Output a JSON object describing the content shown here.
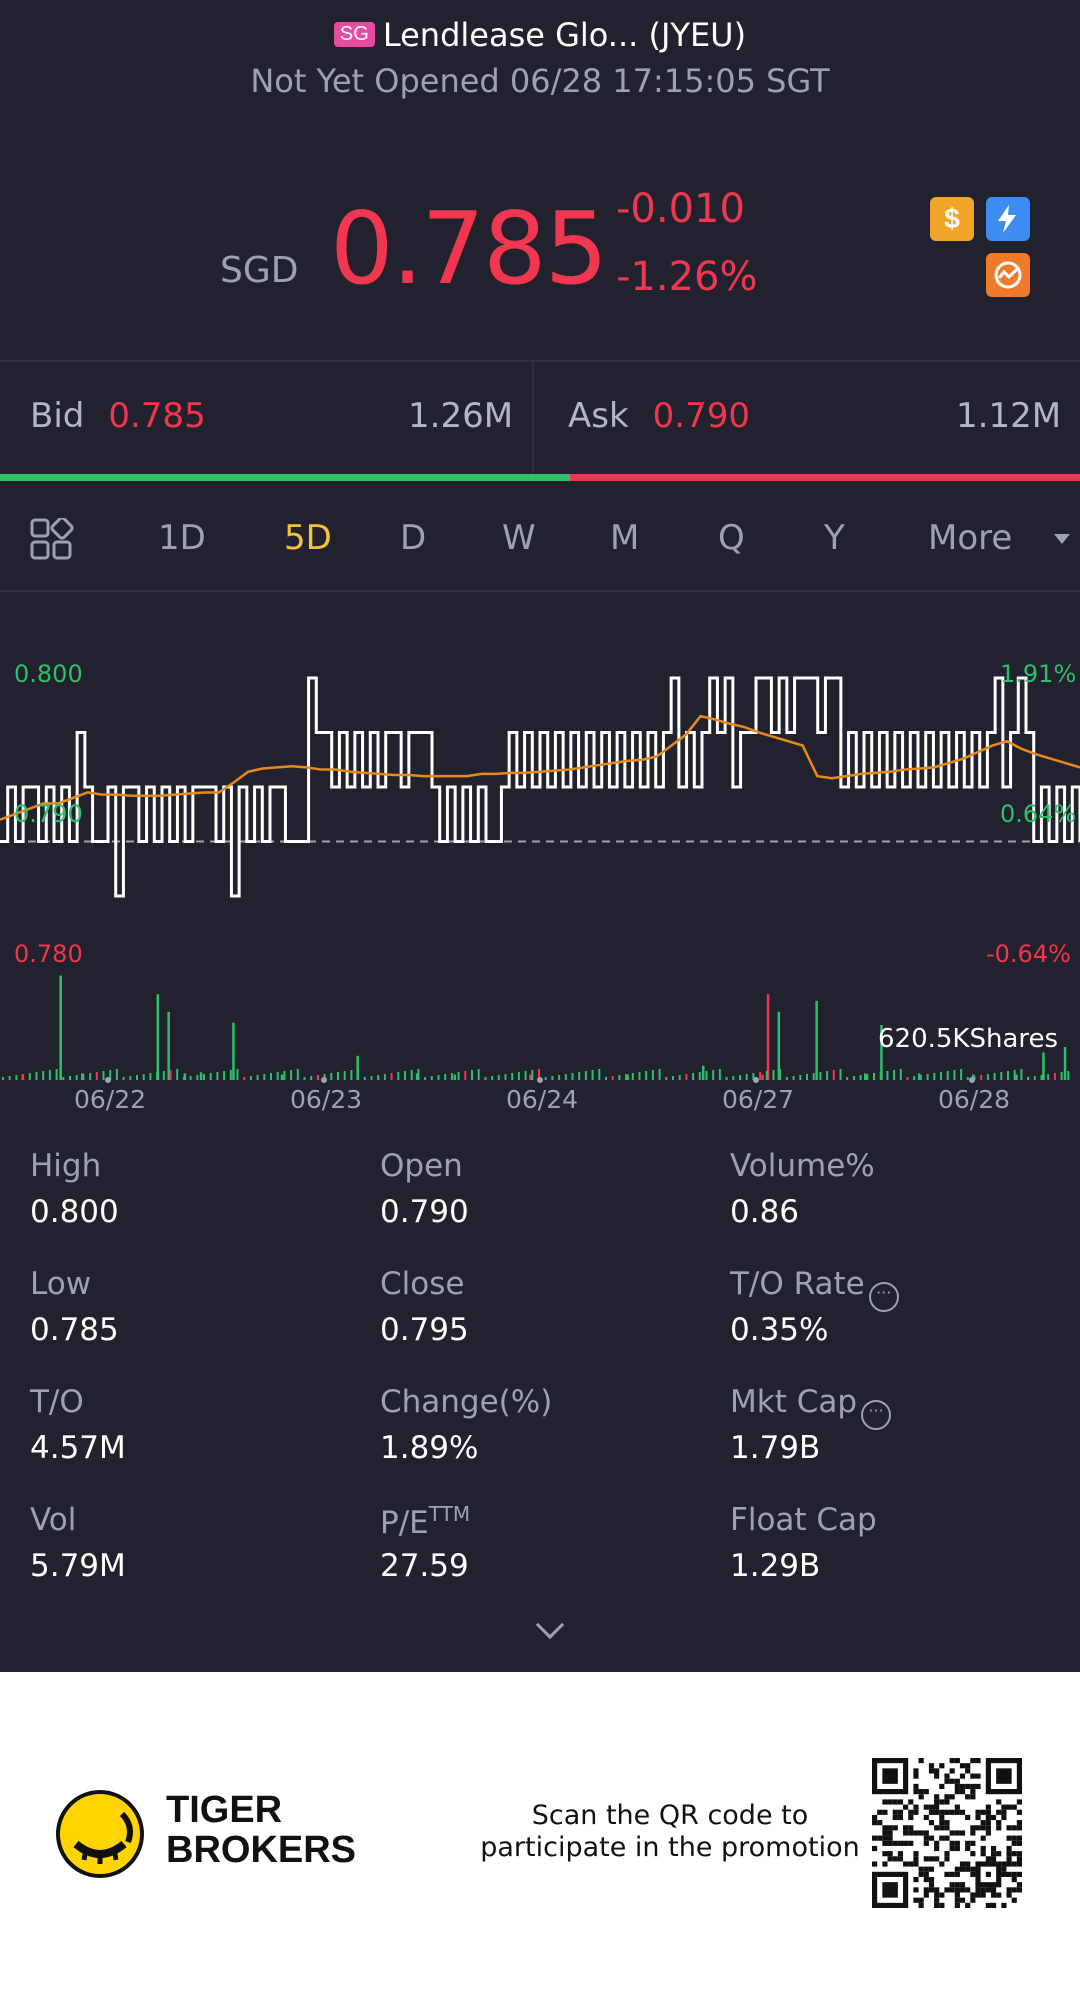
{
  "header": {
    "market_badge": "SG",
    "title": "Lendlease Glo... (JYEU)",
    "status": "Not Yet Opened 06/28 17:15:05 SGT"
  },
  "quote": {
    "currency": "SGD",
    "price": "0.785",
    "change": "-0.010",
    "change_pct": "-1.26%"
  },
  "quick_icons": [
    "dollar-icon",
    "lightning-level1-icon",
    "options-chain-icon"
  ],
  "order_book": {
    "bid_label": "Bid",
    "bid_price": "0.785",
    "bid_size": "1.26M",
    "ask_label": "Ask",
    "ask_price": "0.790",
    "ask_size": "1.12M",
    "bid_share": 0.528
  },
  "tabs": {
    "items": [
      "1D",
      "5D",
      "D",
      "W",
      "M",
      "Q",
      "Y",
      "More"
    ],
    "active": "5D"
  },
  "chart_data": {
    "type": "line",
    "y_left_labels": [
      "0.800",
      "0.790",
      "0.780"
    ],
    "y_right_labels": [
      "1.91%",
      "0.64%",
      "-0.64%"
    ],
    "x_labels": [
      "06/22",
      "06/23",
      "06/24",
      "06/27",
      "06/28"
    ],
    "ylim": [
      0.78,
      0.8
    ],
    "reference_price": 0.785,
    "volume_label": "620.5KShares",
    "series": [
      {
        "name": "price",
        "values": [
          0.785,
          0.79,
          0.785,
          0.79,
          0.79,
          0.785,
          0.79,
          0.785,
          0.79,
          0.785,
          0.795,
          0.79,
          0.785,
          0.785,
          0.79,
          0.78,
          0.79,
          0.79,
          0.785,
          0.79,
          0.785,
          0.79,
          0.785,
          0.79,
          0.785,
          0.79,
          0.79,
          0.79,
          0.785,
          0.79,
          0.78,
          0.79,
          0.785,
          0.79,
          0.785,
          0.79,
          0.79,
          0.785,
          0.785,
          0.785,
          0.8,
          0.795,
          0.795,
          0.79,
          0.795,
          0.79,
          0.795,
          0.79,
          0.795,
          0.79,
          0.795,
          0.795,
          0.79,
          0.795,
          0.795,
          0.795,
          0.79,
          0.785,
          0.79,
          0.785,
          0.79,
          0.785,
          0.79,
          0.785,
          0.785,
          0.79,
          0.795,
          0.79,
          0.795,
          0.79,
          0.795,
          0.79,
          0.795,
          0.79,
          0.795,
          0.79,
          0.795,
          0.79,
          0.795,
          0.79,
          0.795,
          0.79,
          0.795,
          0.79,
          0.795,
          0.79,
          0.795,
          0.8,
          0.79,
          0.795,
          0.79,
          0.795,
          0.8,
          0.795,
          0.8,
          0.79,
          0.795,
          0.795,
          0.8,
          0.8,
          0.795,
          0.8,
          0.795,
          0.8,
          0.8,
          0.8,
          0.795,
          0.8,
          0.8,
          0.79,
          0.795,
          0.79,
          0.795,
          0.79,
          0.795,
          0.79,
          0.795,
          0.79,
          0.795,
          0.79,
          0.795,
          0.79,
          0.795,
          0.79,
          0.795,
          0.79,
          0.795,
          0.79,
          0.795,
          0.8,
          0.79,
          0.795,
          0.8,
          0.795,
          0.785,
          0.79,
          0.785,
          0.79,
          0.785,
          0.79,
          0.785
        ],
        "color": "#ffffff"
      },
      {
        "name": "average",
        "values": [
          0.787,
          0.7875,
          0.788,
          0.7885,
          0.7885,
          0.789,
          0.7895,
          0.7893,
          0.7893,
          0.7892,
          0.7892,
          0.7892,
          0.7893,
          0.7894,
          0.7895,
          0.7895,
          0.7904,
          0.7914,
          0.7917,
          0.7918,
          0.7919,
          0.7918,
          0.7916,
          0.7916,
          0.7914,
          0.7913,
          0.7912,
          0.7911,
          0.7911,
          0.791,
          0.791,
          0.791,
          0.791,
          0.7912,
          0.7912,
          0.7913,
          0.7913,
          0.7914,
          0.7915,
          0.7916,
          0.7918,
          0.792,
          0.7922,
          0.7924,
          0.7925,
          0.7928,
          0.7938,
          0.7948,
          0.7965,
          0.7962,
          0.7958,
          0.7955,
          0.795,
          0.7946,
          0.7942,
          0.7938,
          0.791,
          0.7908,
          0.791,
          0.7912,
          0.7913,
          0.7914,
          0.7916,
          0.7917,
          0.7918,
          0.7922,
          0.7926,
          0.7932,
          0.7938,
          0.7942,
          0.7935,
          0.793,
          0.7926,
          0.7922,
          0.7918
        ],
        "color": "#e8891c"
      }
    ],
    "volume_bars": [
      {
        "x": 0.02,
        "v": 0.05,
        "c": "g"
      },
      {
        "x": 0.055,
        "v": 0.95,
        "c": "g"
      },
      {
        "x": 0.075,
        "v": 0.06,
        "c": "g"
      },
      {
        "x": 0.145,
        "v": 0.78,
        "c": "g"
      },
      {
        "x": 0.155,
        "v": 0.62,
        "c": "g"
      },
      {
        "x": 0.17,
        "v": 0.06,
        "c": "g"
      },
      {
        "x": 0.185,
        "v": 0.07,
        "c": "g"
      },
      {
        "x": 0.215,
        "v": 0.52,
        "c": "g"
      },
      {
        "x": 0.26,
        "v": 0.05,
        "c": "g"
      },
      {
        "x": 0.33,
        "v": 0.22,
        "c": "g"
      },
      {
        "x": 0.385,
        "v": 0.06,
        "c": "g"
      },
      {
        "x": 0.42,
        "v": 0.05,
        "c": "g"
      },
      {
        "x": 0.49,
        "v": 0.05,
        "c": "r"
      },
      {
        "x": 0.58,
        "v": 0.05,
        "c": "g"
      },
      {
        "x": 0.65,
        "v": 0.13,
        "c": "g"
      },
      {
        "x": 0.705,
        "v": 0.05,
        "c": "r"
      },
      {
        "x": 0.71,
        "v": 0.78,
        "c": "r"
      },
      {
        "x": 0.72,
        "v": 0.62,
        "c": "g"
      },
      {
        "x": 0.755,
        "v": 0.72,
        "c": "g"
      },
      {
        "x": 0.8,
        "v": 0.06,
        "c": "g"
      },
      {
        "x": 0.815,
        "v": 0.5,
        "c": "g"
      },
      {
        "x": 0.85,
        "v": 0.06,
        "c": "g"
      },
      {
        "x": 0.9,
        "v": 0.05,
        "c": "g"
      },
      {
        "x": 0.94,
        "v": 0.05,
        "c": "g"
      },
      {
        "x": 0.965,
        "v": 0.25,
        "c": "g"
      },
      {
        "x": 0.985,
        "v": 0.3,
        "c": "g"
      }
    ]
  },
  "stats": [
    {
      "label": "High",
      "value": "0.800"
    },
    {
      "label": "Open",
      "value": "0.790"
    },
    {
      "label": "Volume%",
      "value": "0.86"
    },
    {
      "label": "Low",
      "value": "0.785"
    },
    {
      "label": "Close",
      "value": "0.795"
    },
    {
      "label": "T/O Rate",
      "value": "0.35%"
    },
    {
      "label": "T/O",
      "value": "4.57M"
    },
    {
      "label": "Change(%)",
      "value": "1.89%"
    },
    {
      "label": "Mkt Cap",
      "value": "1.79B"
    },
    {
      "label": "Vol",
      "value": "5.79M"
    },
    {
      "label": "P/E",
      "label_sup": "TTM",
      "value": "27.59"
    },
    {
      "label": "Float Cap",
      "value": "1.29B"
    }
  ],
  "footer": {
    "brand_line1": "TIGER",
    "brand_line2": "BROKERS",
    "promo_line1": "Scan the QR code to",
    "promo_line2": "participate in the promotion"
  },
  "colors": {
    "background": "#21222d",
    "up": "#2dbf6a",
    "down": "#f0374f",
    "accent": "#f5c33b",
    "avg_line": "#e8891c"
  }
}
